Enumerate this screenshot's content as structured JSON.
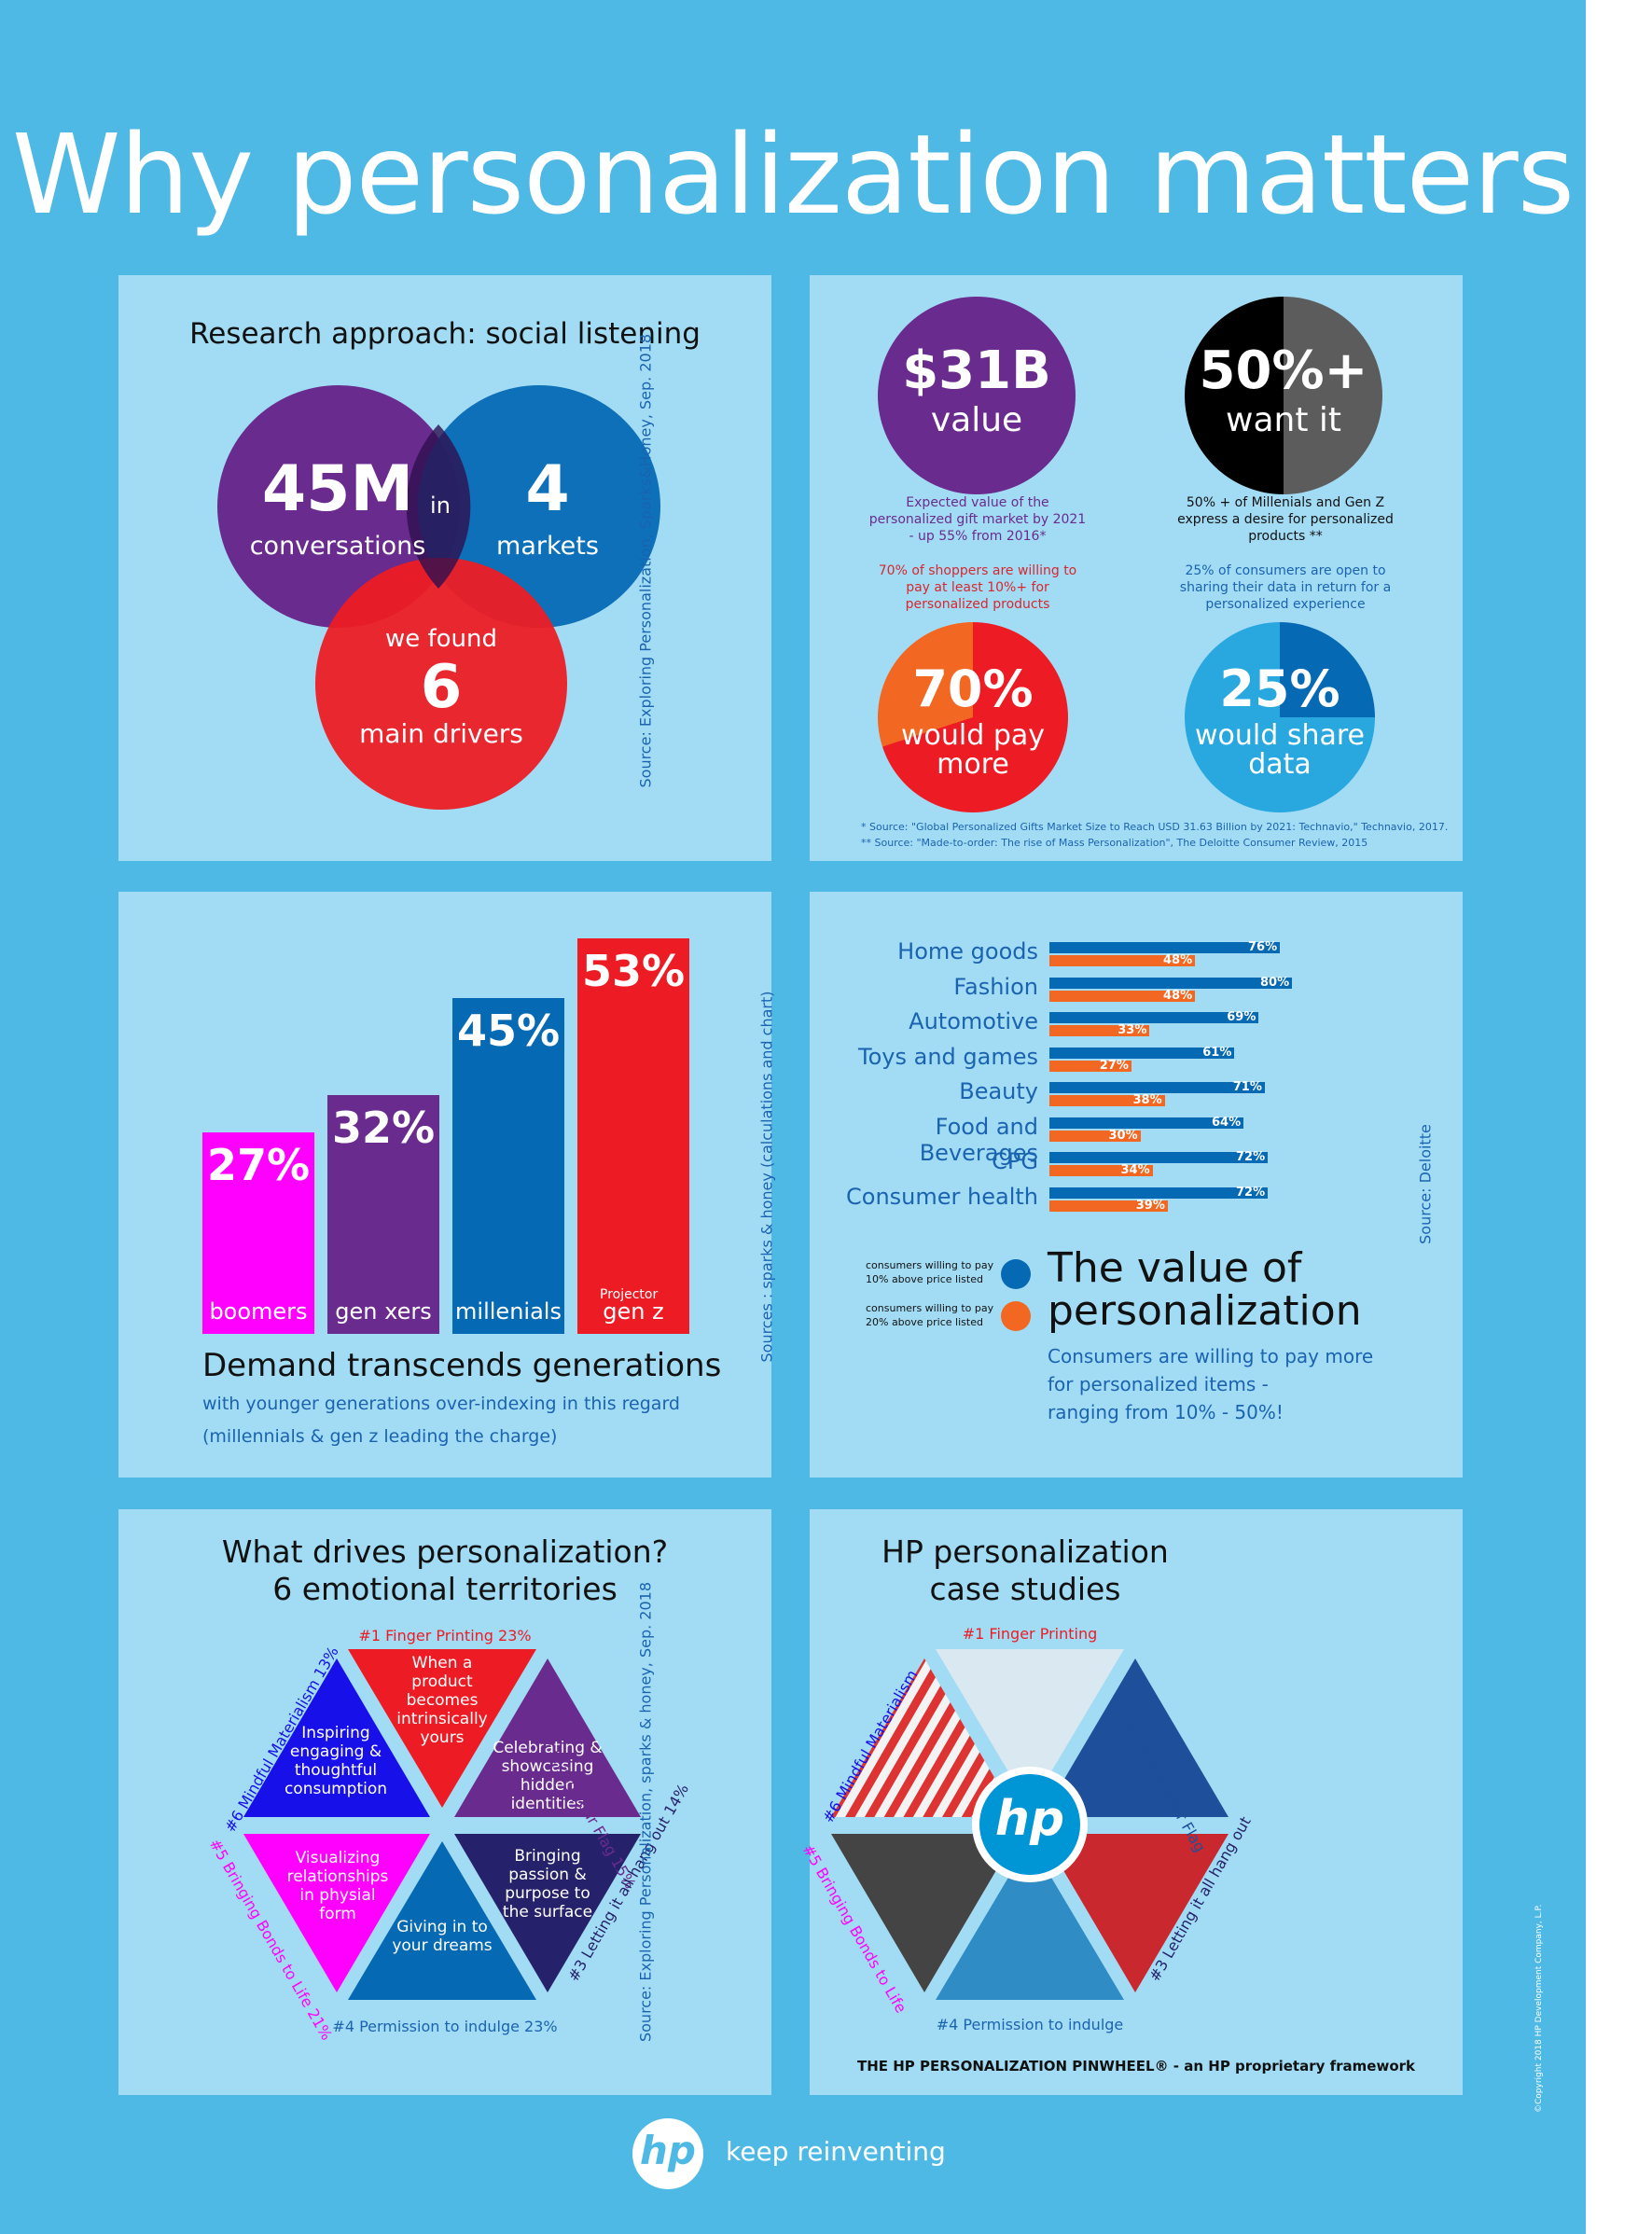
{
  "title": "Why personalization matters",
  "colors": {
    "background": "#4fb9e5",
    "panel": "#a2dcf4",
    "purple": "#6a2b8e",
    "blue": "#0569b4",
    "red": "#ed1c24",
    "magenta": "#ff00ff",
    "orange": "#f26722",
    "black": "#000000",
    "grey": "#555555"
  },
  "research": {
    "heading": "Research approach: social listening",
    "circle1_big": "45M",
    "circle1_small": "conversations",
    "connector": "in",
    "circle2_big": "4",
    "circle2_small": "markets",
    "circle3_top": "we found",
    "circle3_big": "6",
    "circle3_small": "main drivers",
    "source": "Source: Exploring Personalization, Sparks&Honey, Sep. 2018"
  },
  "stats": {
    "c1_big": "$31B",
    "c1_small": "value",
    "c1_note": "Expected value of the personalized gift market by 2021 - up 55% from 2016*",
    "c2_big": "50%+",
    "c2_small": "want it",
    "c2_note": "50% + of Millenials and Gen Z express a desire for personalized products **",
    "c3_note": "70% of shoppers are willing to pay at least 10%+ for personalized products",
    "c3_big": "70%",
    "c3_small1": "would pay",
    "c3_small2": "more",
    "c4_note": "25% of consumers are open to sharing their data in return for a personalized experience",
    "c4_big": "25%",
    "c4_small1": "would share",
    "c4_small2": "data",
    "footnote1": "* Source: \"Global Personalized Gifts Market Size to Reach USD 31.63 Billion by 2021: Technavio,\" Technavio, 2017.",
    "footnote2": "** Source: \"Made-to-order: The rise of Mass Personalization\", The Deloitte Consumer Review, 2015"
  },
  "generations": {
    "bars": [
      {
        "label": "boomers",
        "value": "27%",
        "pct": 27,
        "color": "#ff00ff"
      },
      {
        "label": "gen xers",
        "value": "32%",
        "pct": 32,
        "color": "#6a2b8e"
      },
      {
        "label": "millenials",
        "value": "45%",
        "pct": 45,
        "color": "#0569b4"
      },
      {
        "label": "gen z",
        "value": "53%",
        "pct": 53,
        "color": "#ed1c24"
      }
    ],
    "projector_label": "Projector",
    "heading": "Demand transcends generations",
    "sub1": "with younger generations over-indexing in this regard",
    "sub2": "(millennials & gen z leading the charge)",
    "source": "Sources : sparks & honey (calculations and chart)"
  },
  "chart_data": {
    "type": "bar",
    "orientation": "horizontal",
    "categories": [
      "Home goods",
      "Fashion",
      "Automotive",
      "Toys and games",
      "Beauty",
      "Food and Beverages",
      "CPG",
      "Consumer health"
    ],
    "series": [
      {
        "name": "consumers willing to pay 10% above price listed",
        "values": [
          76,
          80,
          69,
          61,
          71,
          64,
          72,
          72
        ],
        "labels": [
          "76%",
          "80%",
          "69%",
          "61%",
          "71%",
          "64%",
          "72%",
          "72%"
        ],
        "color": "#0569b4"
      },
      {
        "name": "consumers willing to pay 20% above price listed",
        "values": [
          48,
          48,
          33,
          27,
          38,
          30,
          34,
          39
        ],
        "labels": [
          "48%",
          "48%",
          "33%",
          "27%",
          "38%",
          "30%",
          "34%",
          "39%"
        ],
        "color": "#f26722"
      }
    ],
    "xlim": [
      0,
      100
    ],
    "legend": "bottom-left"
  },
  "value": {
    "legend1_line1": "consumers willing to pay",
    "legend1_line2": "10% above price listed",
    "legend2_line1": "consumers willing to pay",
    "legend2_line2": "20% above price listed",
    "heading1": "The value of",
    "heading2": "personalization",
    "sub1": "Consumers are willing to pay more",
    "sub2": "for personalized items -",
    "sub3": "ranging from 10% - 50%!",
    "source": "Source: Deloitte"
  },
  "drivers": {
    "heading1": "What drives personalization?",
    "heading2": "6 emotional territories",
    "t1_label": "#1 Finger Printing 23%",
    "t1_text": "When a product becomes intrinsically yours",
    "t2_label": "#2 Flying your Flag 15%",
    "t2_text": "Celebrating & showcasing hidden identities",
    "t3_label": "#3 Letting it all hang out 14%",
    "t3_text": "Bringing passion & purpose to the surface",
    "t4_label": "#4 Permission to indulge 23%",
    "t4_text": "Giving in to your dreams",
    "t5_label": "#5 Bringing Bonds to Life 21%",
    "t5_text": "Visualizing relationships in physial form",
    "t6_label": "#6 Mindful Materialism 13%",
    "t6_text": "Inspiring engaging & thoughtful consumption",
    "source": "Source: Exploring Personalization, sparks & honey, Sep. 2018"
  },
  "hp": {
    "heading1": "HP personalization",
    "heading2": "case studies",
    "l1": "#1 Finger Printing",
    "l2": "#2 Flying your Flag",
    "l3": "#3 Letting it all hang out",
    "l4": "#4 Permission to indulge",
    "l5": "#5 Bringing Bonds to Life",
    "l6": "#6 Mindful Materialism",
    "logo_text": "hp",
    "pinwheel_caption": "THE HP PERSONALIZATION PINWHEEL® - an HP proprietary framework",
    "copyright": "©Copyright 2018 HP Development Company, L.P."
  },
  "footer": {
    "logo_text": "hp",
    "tagline": "keep reinventing"
  }
}
